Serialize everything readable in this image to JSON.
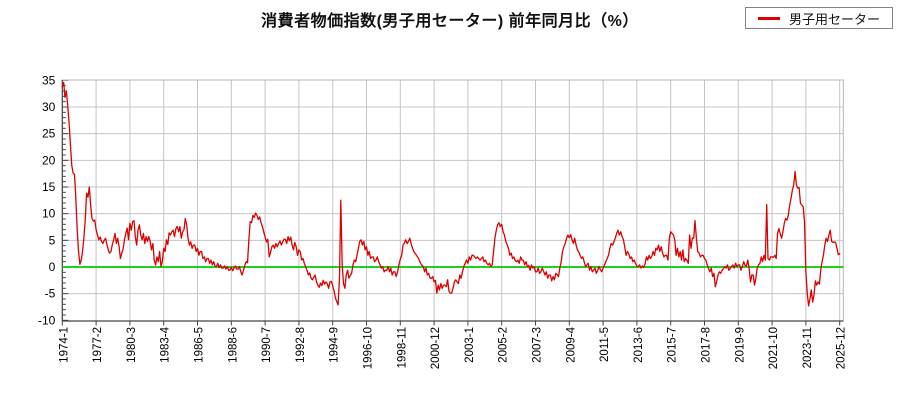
{
  "title": "消費者物価指数(男子用セーター) 前年同月比（%）",
  "legend": {
    "label": "男子用セーター",
    "marker_color": "#dd0000"
  },
  "colors": {
    "line": "#dd0000",
    "zero_line": "#00cc00",
    "grid": "#c4c4c4",
    "border_light": "#b5b5b5",
    "axis_dark": "#444444",
    "text": "#000000"
  },
  "chart_data": {
    "type": "line",
    "title": "消費者物価指数(男子用セーター) 前年同月比（%）",
    "series_name": "男子用セーター",
    "ylabel": "前年同月比（%）",
    "ylim": [
      -10,
      35
    ],
    "grid": true,
    "legend_position": "top-right",
    "zero_line": true,
    "y_axis": {
      "tick_values": [
        35,
        30,
        25,
        20,
        15,
        10,
        5,
        0,
        -5,
        -10
      ],
      "tick_labels": [
        "35",
        "30",
        "25",
        "20",
        "15",
        "10",
        "5",
        "0",
        "-5",
        "-10"
      ],
      "minor_tick_step": 1
    },
    "x_axis": {
      "tick_labels": [
        "1974-1",
        "1977-2",
        "1980-3",
        "1983-4",
        "1986-5",
        "1988-6",
        "1990-7",
        "1992-8",
        "1994-9",
        "1996-10",
        "1998-11",
        "2000-12",
        "2003-1",
        "2005-2",
        "2007-3",
        "2009-4",
        "2011-5",
        "2013-6",
        "2015-7",
        "2017-8",
        "2019-9",
        "2021-10",
        "2023-11",
        "2025-12"
      ],
      "ticks_every_n_observations": 25,
      "note": "values are approximate readings from the plotted line; one value per observation, observation 0 = 1974-1, observation 575 = 2025-12"
    },
    "values": [
      33.8,
      34.6,
      31.8,
      33.0,
      30.3,
      27.0,
      23.0,
      19.0,
      17.6,
      17.4,
      13.0,
      7.0,
      3.0,
      0.5,
      1.3,
      3.0,
      5.5,
      9.0,
      13.8,
      13.1,
      15.0,
      11.5,
      9.1,
      8.6,
      8.8,
      7.0,
      6.0,
      5.1,
      5.6,
      4.8,
      4.4,
      5.0,
      5.4,
      4.2,
      3.2,
      2.6,
      2.9,
      4.2,
      5.1,
      6.3,
      4.4,
      5.4,
      3.8,
      1.6,
      2.6,
      3.4,
      5.1,
      6.3,
      7.3,
      5.1,
      8.2,
      6.9,
      8.5,
      8.7,
      5.7,
      4.1,
      6.9,
      7.9,
      6.0,
      5.1,
      6.3,
      4.4,
      5.7,
      4.8,
      5.7,
      4.8,
      3.2,
      4.4,
      1.3,
      0.4,
      1.9,
      1.0,
      2.9,
      0.1,
      1.0,
      3.5,
      2.9,
      5.1,
      4.2,
      6.4,
      6.0,
      6.6,
      6.9,
      5.7,
      7.2,
      7.6,
      6.6,
      7.6,
      5.4,
      6.6,
      7.0,
      9.1,
      7.9,
      5.4,
      4.1,
      4.7,
      3.5,
      4.1,
      4.1,
      2.9,
      3.5,
      2.2,
      2.9,
      2.9,
      1.6,
      1.9,
      1.0,
      1.6,
      1.6,
      0.7,
      1.3,
      0.4,
      1.0,
      0.1,
      0.1,
      0.7,
      -0.1,
      0.4,
      -0.2,
      -0.2,
      0.2,
      -0.4,
      0.1,
      -0.6,
      -0.6,
      -0.1,
      -0.7,
      -0.2,
      0.2,
      -0.4,
      -0.4,
      0.1,
      -0.9,
      -1.5,
      -0.6,
      0.3,
      1.0,
      0.8,
      5.2,
      8.5,
      8.3,
      9.7,
      9.3,
      10.1,
      9.7,
      8.9,
      9.4,
      8.3,
      7.6,
      6.6,
      5.6,
      4.7,
      5.2,
      1.9,
      2.7,
      3.8,
      4.1,
      3.5,
      4.4,
      3.8,
      4.4,
      4.9,
      4.1,
      4.7,
      5.2,
      5.2,
      4.4,
      5.7,
      4.9,
      5.6,
      4.1,
      3.2,
      4.6,
      3.8,
      2.2,
      3.2,
      2.9,
      1.3,
      1.6,
      0.7,
      0.0,
      -0.6,
      -1.5,
      -1.1,
      -2.1,
      -2.4,
      -1.9,
      -1.5,
      -2.8,
      -3.4,
      -3.8,
      -3.0,
      -3.5,
      -2.5,
      -3.2,
      -2.8,
      -3.1,
      -4.0,
      -2.8,
      -2.7,
      -3.5,
      -4.5,
      -5.8,
      -6.5,
      -7.1,
      -2.0,
      12.5,
      0.4,
      -3.1,
      -4.0,
      -1.5,
      -0.6,
      -2.1,
      -1.6,
      -1.2,
      0.4,
      1.3,
      1.0,
      2.2,
      3.5,
      4.8,
      5.1,
      4.1,
      4.8,
      3.2,
      3.8,
      2.2,
      2.9,
      1.6,
      1.9,
      1.9,
      1.0,
      1.3,
      1.9,
      1.0,
      0.4,
      -0.2,
      0.1,
      -0.9,
      -0.6,
      -0.6,
      0.1,
      -0.9,
      -0.2,
      -1.5,
      -0.9,
      -0.9,
      -1.8,
      -0.9,
      0.4,
      1.5,
      2.2,
      4.1,
      4.5,
      5.1,
      4.4,
      4.8,
      5.4,
      4.4,
      3.5,
      2.9,
      2.5,
      2.2,
      1.8,
      1.3,
      0.7,
      0.3,
      0.1,
      -0.9,
      -0.2,
      -1.5,
      -1.2,
      -2.1,
      -2.1,
      -1.8,
      -2.8,
      -2.5,
      -4.9,
      -3.4,
      -4.3,
      -3.1,
      -4.0,
      -3.4,
      -3.4,
      -3.7,
      -2.4,
      -4.6,
      -4.9,
      -4.9,
      -4.0,
      -2.8,
      -2.4,
      -2.8,
      -3.1,
      -1.5,
      -2.1,
      -0.9,
      0.1,
      0.7,
      1.3,
      0.7,
      1.9,
      1.3,
      2.2,
      2.2,
      1.9,
      1.6,
      1.9,
      1.6,
      1.3,
      1.6,
      1.9,
      1.0,
      1.3,
      0.7,
      0.4,
      0.7,
      0.1,
      0.4,
      2.9,
      5.4,
      6.9,
      7.9,
      8.3,
      7.6,
      8.0,
      6.6,
      6.0,
      4.8,
      4.2,
      3.5,
      2.2,
      2.6,
      1.6,
      1.9,
      1.2,
      1.0,
      1.3,
      0.7,
      1.9,
      1.3,
      1.3,
      0.4,
      1.0,
      0.1,
      0.3,
      -0.6,
      0.4,
      -0.2,
      0.1,
      -0.9,
      -0.9,
      -0.2,
      -1.2,
      -0.9,
      -0.2,
      -0.8,
      -1.5,
      -0.9,
      -2.1,
      -1.5,
      -1.5,
      -2.6,
      -1.8,
      -2.4,
      -1.2,
      -1.4,
      -1.8,
      -0.2,
      1.0,
      2.9,
      3.8,
      4.4,
      5.4,
      6.0,
      5.5,
      6.1,
      5.1,
      4.4,
      5.4,
      4.1,
      3.2,
      2.8,
      2.2,
      1.6,
      1.9,
      1.0,
      0.1,
      0.4,
      0.7,
      -0.6,
      0.1,
      -0.9,
      -0.6,
      -0.2,
      -1.2,
      -0.6,
      0.1,
      -0.5,
      -0.9,
      -0.2,
      0.4,
      1.0,
      1.6,
      2.2,
      3.5,
      4.4,
      4.1,
      4.7,
      5.4,
      6.3,
      6.9,
      6.0,
      6.6,
      5.8,
      5.1,
      3.8,
      2.2,
      2.9,
      2.5,
      1.6,
      1.9,
      1.0,
      1.3,
      0.7,
      0.1,
      0.1,
      0.4,
      -0.2,
      0.2,
      -0.1,
      0.5,
      1.9,
      1.3,
      2.2,
      1.6,
      2.0,
      2.9,
      2.2,
      3.5,
      3.2,
      4.1,
      2.9,
      3.8,
      2.6,
      1.9,
      2.2,
      2.2,
      1.3,
      5.4,
      6.6,
      6.3,
      6.0,
      5.1,
      2.2,
      3.5,
      1.9,
      2.9,
      1.3,
      3.2,
      1.0,
      1.6,
      1.2,
      0.7,
      6.0,
      3.5,
      5.4,
      5.4,
      8.7,
      5.4,
      2.9,
      2.6,
      1.9,
      2.2,
      2.2,
      1.6,
      1.3,
      0.4,
      -0.3,
      -0.9,
      -0.2,
      -1.8,
      -1.2,
      -3.7,
      -2.7,
      -1.5,
      -0.9,
      -1.2,
      -0.6,
      -0.3,
      0.1,
      -0.2,
      0.4,
      -0.6,
      -0.3,
      0.1,
      0.4,
      -0.2,
      0.7,
      0.1,
      0.4,
      0.4,
      -0.6,
      0.1,
      1.0,
      0.3,
      0.2,
      1.3,
      -0.2,
      -2.8,
      -1.5,
      -1.5,
      -3.4,
      -2.1,
      -0.2,
      0.4,
      0.7,
      1.9,
      1.0,
      2.2,
      1.3,
      11.7,
      1.6,
      1.3,
      1.9,
      1.9,
      1.8,
      2.2,
      1.6,
      6.3,
      7.2,
      6.2,
      5.4,
      6.6,
      8.2,
      9.1,
      8.8,
      9.7,
      11.6,
      12.9,
      14.4,
      15.4,
      17.9,
      15.4,
      14.8,
      14.9,
      11.9,
      11.6,
      11.3,
      8.5,
      -1.0,
      -5.0,
      -7.3,
      -5.9,
      -4.3,
      -6.6,
      -5.2,
      -2.6,
      -3.4,
      -2.8,
      -3.2,
      -0.5,
      1.0,
      2.3,
      4.1,
      5.4,
      4.8,
      6.0,
      6.9,
      4.8,
      4.6,
      4.7,
      4.6,
      3.5,
      2.3,
      2.5
    ]
  }
}
